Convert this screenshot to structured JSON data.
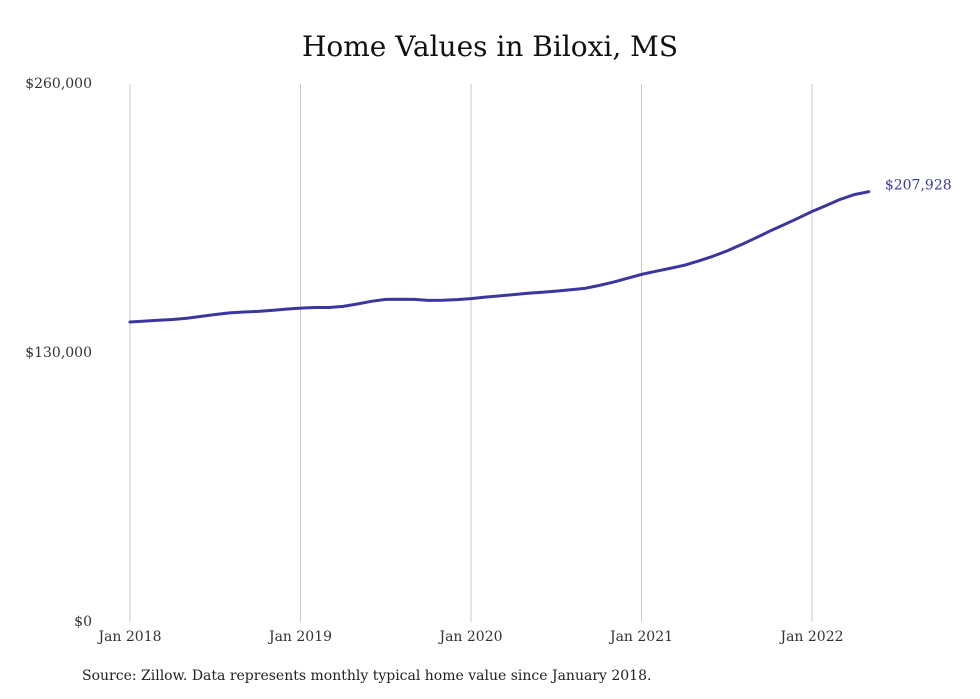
{
  "title": "Home Values in Biloxi, MS",
  "source": "Source: Zillow. Data represents monthly typical home value since January 2018.",
  "line_color": "#3b379e",
  "grid_color": "#c8c8c8",
  "end_label": "$207,928",
  "chart_data": {
    "type": "line",
    "title": "Home Values in Biloxi, MS",
    "xlabel": "",
    "ylabel": "",
    "ylim": [
      0,
      260000
    ],
    "yticks": [
      0,
      130000,
      260000
    ],
    "ytick_labels": [
      "$0",
      "$130,000",
      "$260,000"
    ],
    "xticks": [
      "2018-01",
      "2019-01",
      "2020-01",
      "2021-01",
      "2022-01"
    ],
    "xtick_labels": [
      "Jan 2018",
      "Jan 2019",
      "Jan 2020",
      "Jan 2021",
      "Jan 2022"
    ],
    "grid": "vertical",
    "end_value_label": "$207,928",
    "series": [
      {
        "x": [
          "2018-01",
          "2018-02",
          "2018-03",
          "2018-04",
          "2018-05",
          "2018-06",
          "2018-07",
          "2018-08",
          "2018-09",
          "2018-10",
          "2018-11",
          "2018-12",
          "2019-01",
          "2019-02",
          "2019-03",
          "2019-04",
          "2019-05",
          "2019-06",
          "2019-07",
          "2019-08",
          "2019-09",
          "2019-10",
          "2019-11",
          "2019-12",
          "2020-01",
          "2020-02",
          "2020-03",
          "2020-04",
          "2020-05",
          "2020-06",
          "2020-07",
          "2020-08",
          "2020-09",
          "2020-10",
          "2020-11",
          "2020-12",
          "2021-01",
          "2021-02",
          "2021-03",
          "2021-04",
          "2021-05",
          "2021-06",
          "2021-07",
          "2021-08",
          "2021-09",
          "2021-10",
          "2021-11",
          "2021-12",
          "2022-01",
          "2022-02",
          "2022-03",
          "2022-04",
          "2022-05"
        ],
        "values": [
          145000,
          145400,
          145800,
          146200,
          146800,
          147700,
          148600,
          149400,
          149800,
          150100,
          150600,
          151200,
          151700,
          152000,
          152000,
          152500,
          153700,
          155000,
          155900,
          156000,
          155900,
          155400,
          155500,
          155800,
          156300,
          157000,
          157600,
          158200,
          158900,
          159400,
          159900,
          160600,
          161200,
          162600,
          164200,
          166100,
          168000,
          169500,
          170900,
          172400,
          174400,
          176700,
          179300,
          182300,
          185500,
          188800,
          191900,
          195100,
          198400,
          201300,
          204300,
          206600,
          207928
        ]
      }
    ]
  }
}
